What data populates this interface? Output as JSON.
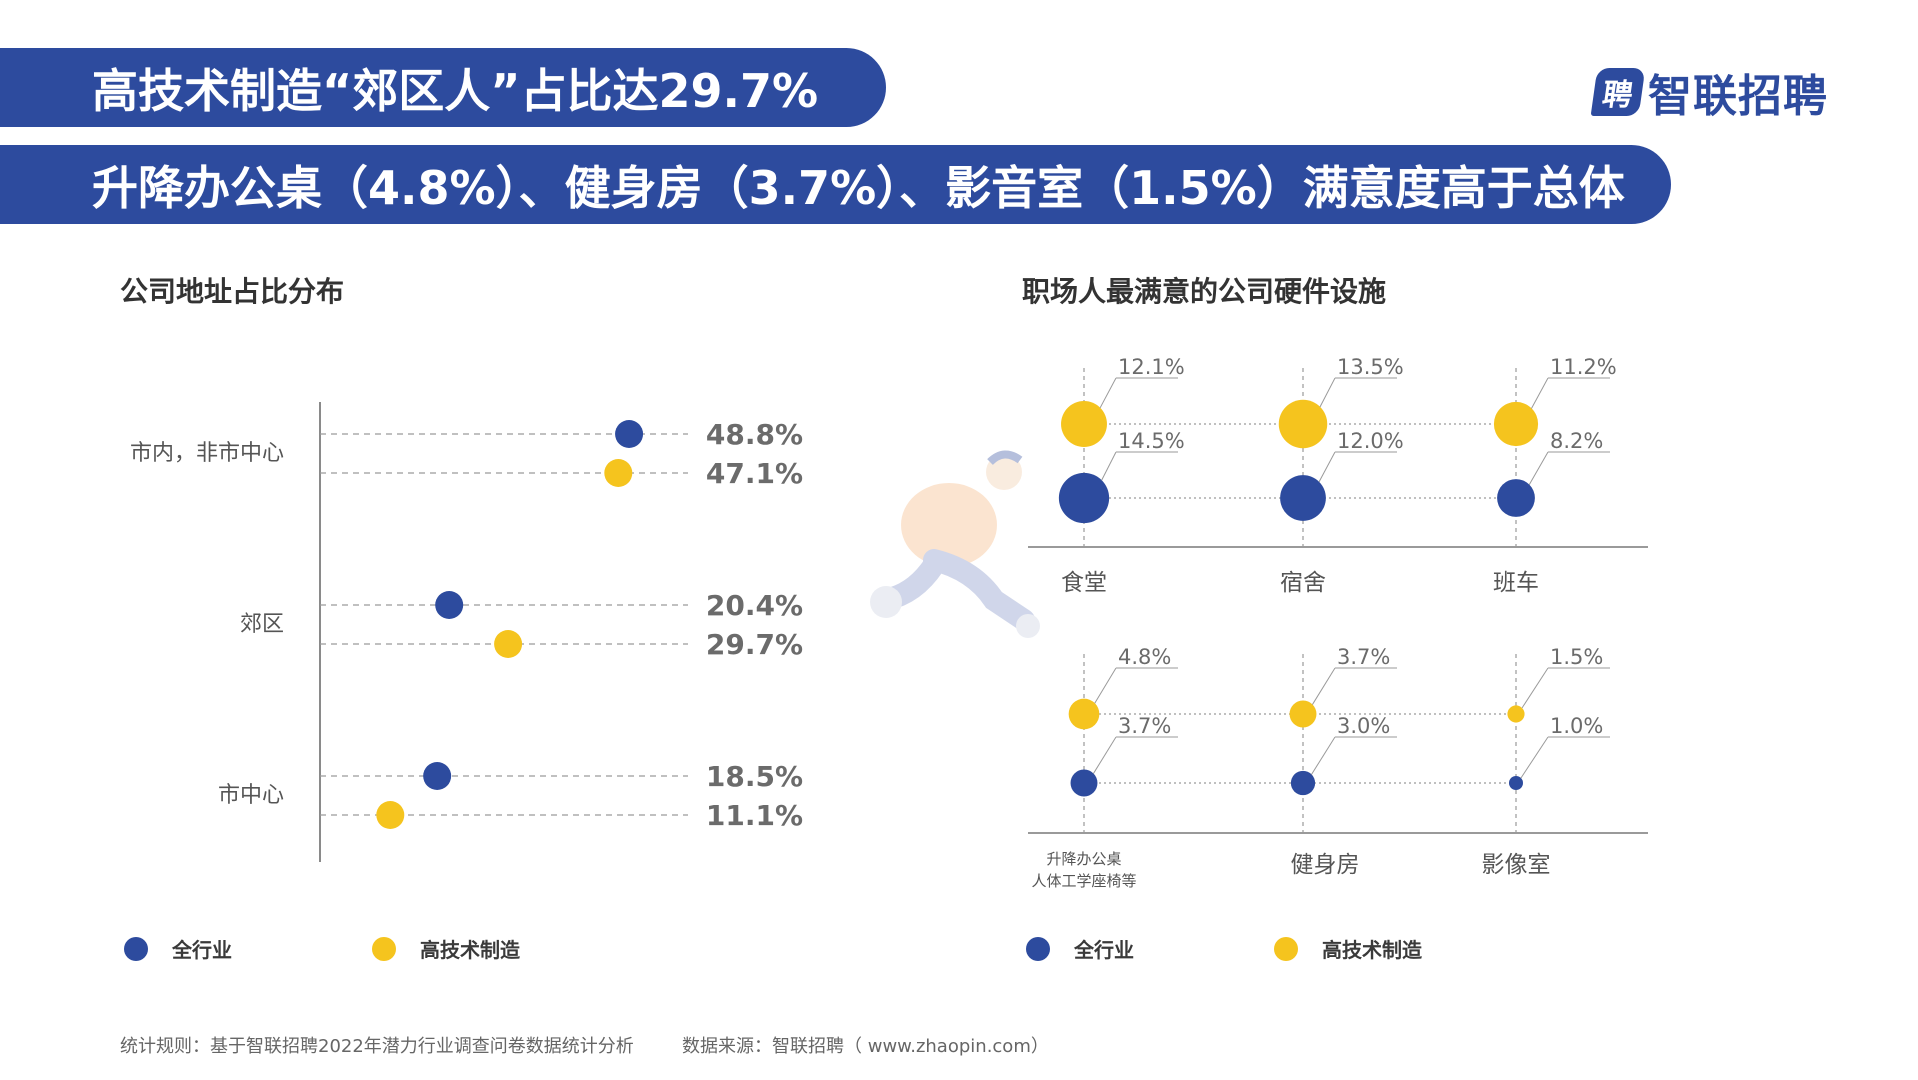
{
  "header": {
    "title_line1": "高技术制造“郊区人”占比达29.7%",
    "title_line2": "升降办公桌（4.8%）、健身房（3.7%）、影音室（1.5%）满意度高于总体",
    "logo_text": "智联招聘"
  },
  "colors": {
    "blue": "#2d4b9e",
    "yellow": "#f5c41e",
    "navy_banner": "#2d4b9e"
  },
  "left_chart_title": "公司地址占比分布",
  "right_chart_title": "职场人最满意的公司硬件设施",
  "chart_data": [
    {
      "type": "scatter",
      "title": "公司地址占比分布",
      "categories": [
        "市内，非市中心",
        "郊区",
        "市中心"
      ],
      "series": [
        {
          "name": "全行业",
          "values": [
            48.8,
            20.4,
            18.5
          ],
          "labels": [
            "48.8%",
            "20.4%",
            "18.5%"
          ]
        },
        {
          "name": "高技术制造",
          "values": [
            47.1,
            29.7,
            11.1
          ],
          "labels": [
            "47.1%",
            "29.7%",
            "11.1%"
          ]
        }
      ],
      "xlim": [
        0,
        60
      ]
    },
    {
      "type": "scatter",
      "title": "职场人最满意的公司硬件设施",
      "categories": [
        "食堂",
        "宿舍",
        "班车"
      ],
      "series": [
        {
          "name": "高技术制造",
          "values": [
            12.1,
            13.5,
            11.2
          ],
          "labels": [
            "12.1%",
            "13.5%",
            "11.2%"
          ]
        },
        {
          "name": "全行业",
          "values": [
            14.5,
            12.0,
            8.2
          ],
          "labels": [
            "14.5%",
            "12.0%",
            "8.2%"
          ]
        }
      ]
    },
    {
      "type": "scatter",
      "categories": [
        "升降办公桌人体工学座椅等",
        "健身房",
        "影像室"
      ],
      "category_lines": [
        [
          "升降办公桌",
          "人体工学座椅等"
        ],
        [
          "健身房"
        ],
        [
          "影像室"
        ]
      ],
      "series": [
        {
          "name": "高技术制造",
          "values": [
            4.8,
            3.7,
            1.5
          ],
          "labels": [
            "4.8%",
            "3.7%",
            "1.5%"
          ]
        },
        {
          "name": "全行业",
          "values": [
            3.7,
            3.0,
            1.0
          ],
          "labels": [
            "3.7%",
            "3.0%",
            "1.0%"
          ]
        }
      ]
    }
  ],
  "legend": {
    "all_industry": "全行业",
    "high_tech": "高技术制造"
  },
  "footer": {
    "rule": "统计规则：基于智联招聘2022年潜力行业调查问卷数据统计分析",
    "source": "数据来源：智联招聘（ www.zhaopin.com）"
  }
}
